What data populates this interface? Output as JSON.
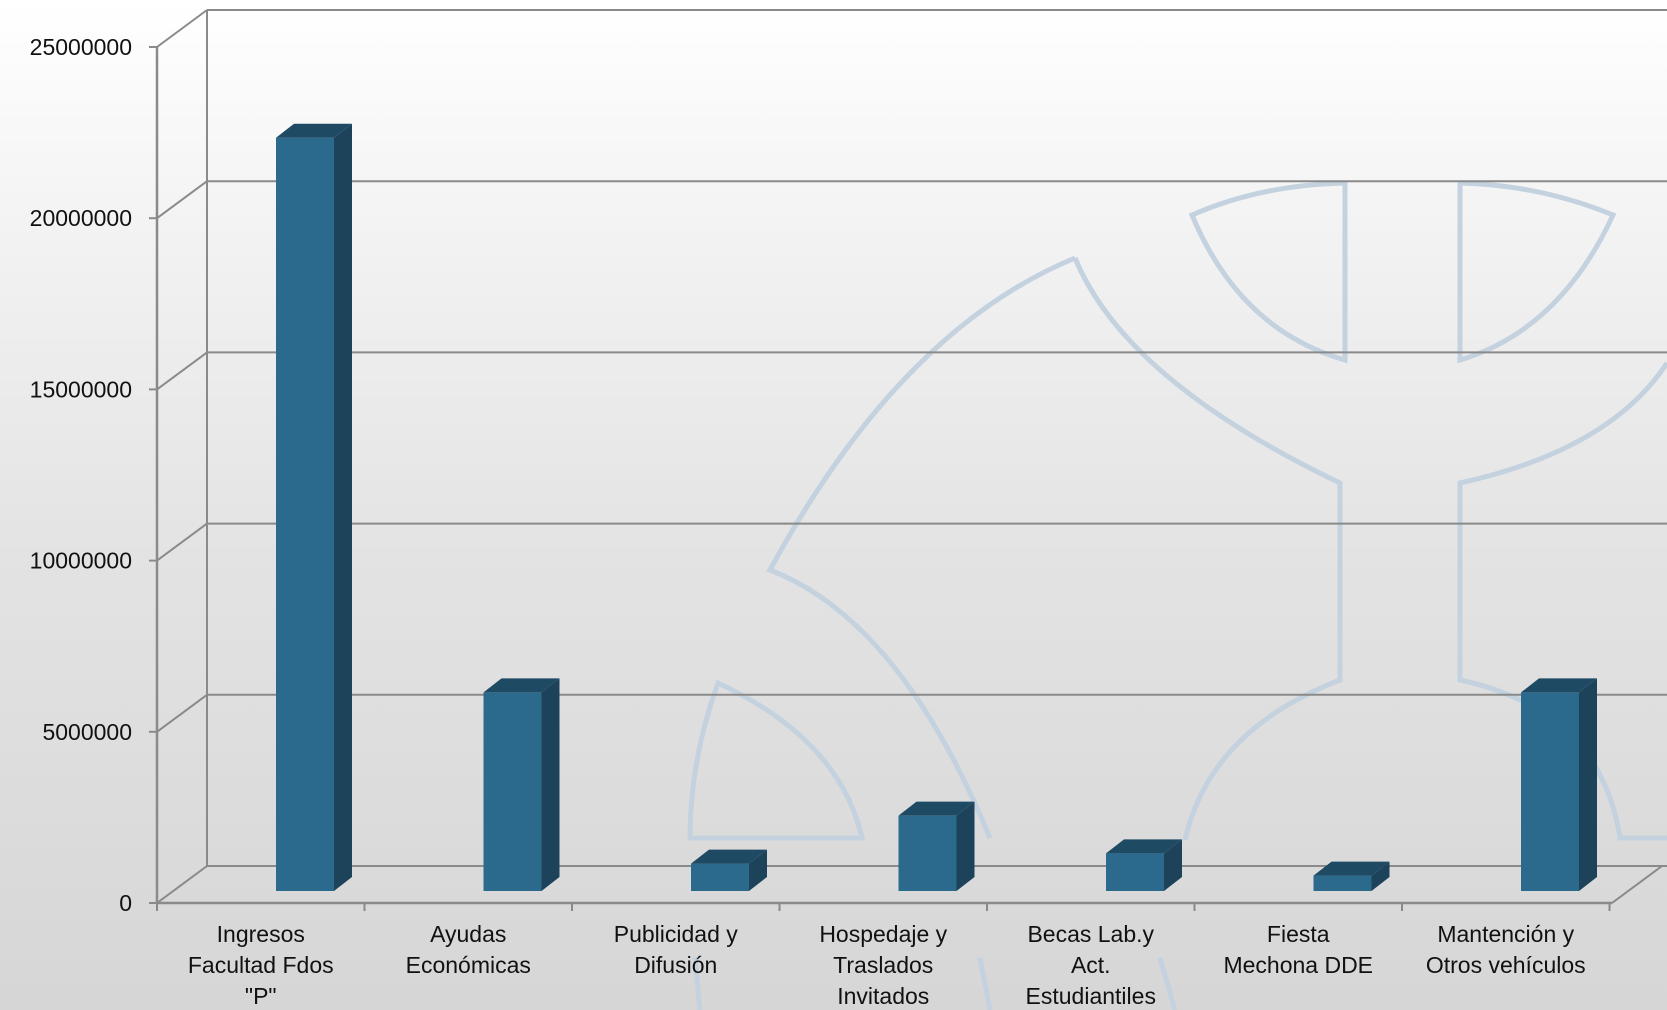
{
  "chart_data": {
    "type": "bar",
    "style": "3d-column",
    "categories": [
      [
        "Ingresos",
        "Facultad Fdos",
        "\"P\""
      ],
      [
        "Ayudas",
        "Económicas"
      ],
      [
        "Publicidad  y",
        "Difusión"
      ],
      [
        "Hospedaje y",
        "Traslados",
        "Invitados"
      ],
      [
        "Becas Lab.y",
        "Act.",
        "Estudiantiles"
      ],
      [
        "Fiesta",
        "Mechona DDE"
      ],
      [
        "Mantención y",
        "Otros vehículos"
      ]
    ],
    "values": [
      22000000,
      5800000,
      800000,
      2200000,
      1100000,
      450000,
      5800000
    ],
    "yticks": [
      "0",
      "5000000",
      "10000000",
      "15000000",
      "20000000",
      "25000000"
    ],
    "ylim": [
      0,
      25000000
    ],
    "grid": true,
    "legend": "none",
    "colors": {
      "bar_front": "#2b6a8d",
      "bar_side": "#1d435b",
      "bar_top": "#1f4a64",
      "grid": "#8a8a8a",
      "watermark": "#c3d2de"
    }
  }
}
